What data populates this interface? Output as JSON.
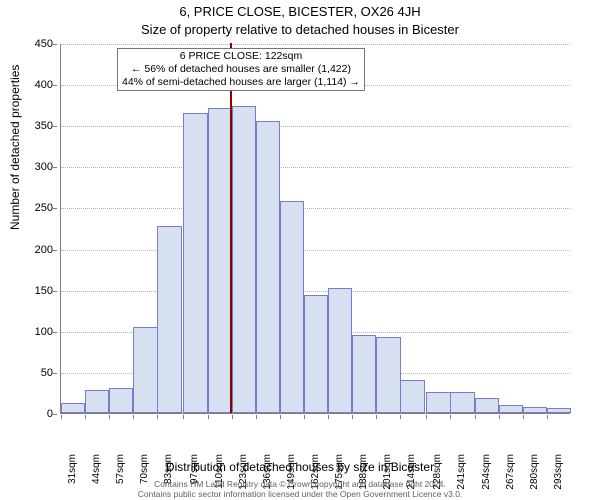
{
  "title": "6, PRICE CLOSE, BICESTER, OX26 4JH",
  "subtitle": "Size of property relative to detached houses in Bicester",
  "ylabel": "Number of detached properties",
  "xlabel": "Distribution of detached houses by size in Bicester",
  "footer_line1": "Contains HM Land Registry data © Crown copyright and database right 2024.",
  "footer_line2": "Contains public sector information licensed under the Open Government Licence v3.0.",
  "annotation": {
    "line1": "6 PRICE CLOSE: 122sqm",
    "line2": "← 56% of detached houses are smaller (1,422)",
    "line3": "44% of semi-detached houses are larger (1,114) →"
  },
  "chart": {
    "type": "histogram",
    "ylim": [
      0,
      450
    ],
    "ytick_step": 50,
    "yticks": [
      0,
      50,
      100,
      150,
      200,
      250,
      300,
      350,
      400,
      450
    ],
    "bar_fill": "#d6e0f0",
    "bar_border": "#7b7bcc",
    "grid_color": "#b0b0b0",
    "axis_color": "#808080",
    "marker_color": "#8b0000",
    "marker_value": 122,
    "background_color": "#ffffff",
    "title_fontsize": 13,
    "label_fontsize": 12,
    "tick_fontsize": 11,
    "categories": [
      "31sqm",
      "44sqm",
      "57sqm",
      "70sqm",
      "83sqm",
      "97sqm",
      "110sqm",
      "123sqm",
      "136sqm",
      "149sqm",
      "162sqm",
      "175sqm",
      "188sqm",
      "201sqm",
      "214sqm",
      "228sqm",
      "241sqm",
      "254sqm",
      "267sqm",
      "280sqm",
      "293sqm"
    ],
    "values": [
      12,
      28,
      30,
      105,
      228,
      365,
      371,
      373,
      355,
      258,
      144,
      152,
      95,
      93,
      40,
      25,
      25,
      18,
      10,
      7,
      6
    ],
    "x_numeric": [
      31,
      44,
      57,
      70,
      83,
      97,
      110,
      123,
      136,
      149,
      162,
      175,
      188,
      201,
      214,
      228,
      241,
      254,
      267,
      280,
      293
    ]
  }
}
